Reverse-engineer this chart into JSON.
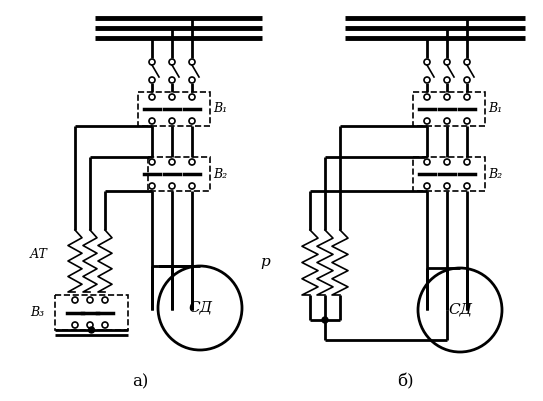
{
  "bg_color": "#ffffff",
  "line_color": "#000000",
  "lw_thick": 2.0,
  "lw_thin": 1.2,
  "lw_bus": 3.5,
  "fig_width": 5.43,
  "fig_height": 4.01,
  "label_a": "а)",
  "label_b": "б)",
  "label_AT": "АТ",
  "label_B1a": "В₁",
  "label_B2a": "В₂",
  "label_B3a": "В₃",
  "label_B1b": "В₁",
  "label_B2b": "В₂",
  "label_R": "р",
  "label_SDa": "СД",
  "label_SDb": "СД"
}
